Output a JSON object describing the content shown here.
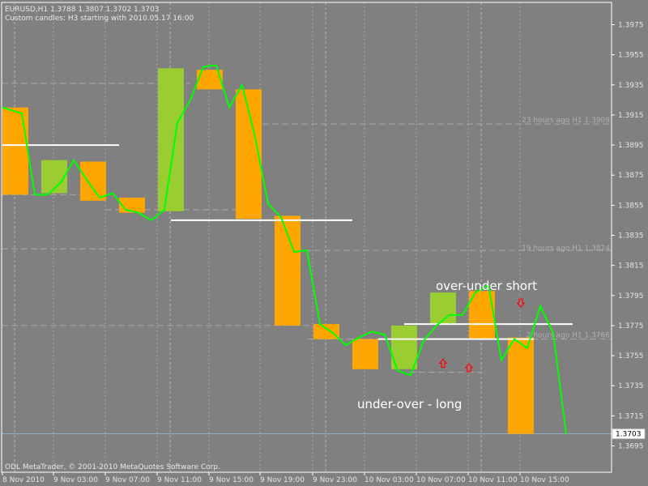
{
  "header": {
    "line1": "EURUSD,H1  1.3788 1.3807 1.3702 1.3703",
    "line2": "Custom candles: H3 starting with 2010.05.17 16:00"
  },
  "footer": {
    "copyright": "ODL MetaTrader, © 2001-2010 MetaQuotes Software Corp."
  },
  "annotations": {
    "short": "over-under short",
    "long": "under-over - long"
  },
  "level_labels": [
    {
      "text": "23 hours ago H1 1.3909",
      "price": 1.3909
    },
    {
      "text": "19 hours ago H1 1.3824",
      "price": 1.3824
    },
    {
      "text": "2 hours ago H1 1.3766",
      "price": 1.3766
    }
  ],
  "colors": {
    "background": "#808080",
    "bull": "#9ACD32",
    "bear": "#FFA500",
    "price_line": "#00FF00",
    "level_line": "#FFFFFF",
    "arrow": "#FF0000"
  },
  "chart_data": {
    "type": "candlestick",
    "symbol": "EURUSD",
    "timeframe": "H1",
    "current_price": "1.3703",
    "ylim": [
      1.369,
      1.399
    ],
    "y_ticks": [
      "1.3975",
      "1.3955",
      "1.3935",
      "1.3915",
      "1.3895",
      "1.3875",
      "1.3855",
      "1.3835",
      "1.3815",
      "1.3795",
      "1.3775",
      "1.3755",
      "1.3735",
      "1.3715",
      "1.3695"
    ],
    "x_ticks": [
      "8 Nov 2010",
      "9 Nov 03:00",
      "9 Nov 07:00",
      "9 Nov 11:00",
      "9 Nov 15:00",
      "9 Nov 19:00",
      "9 Nov 23:00",
      "10 Nov 03:00",
      "10 Nov 07:00",
      "10 Nov 11:00",
      "10 Nov 15:00"
    ],
    "bar_count": 44,
    "custom_candles": [
      {
        "bar_start": 0,
        "bars": 2,
        "open": 1.392,
        "close": 1.3862,
        "dir": "down"
      },
      {
        "bar_start": 3,
        "bars": 2,
        "open": 1.3863,
        "close": 1.3885,
        "dir": "up"
      },
      {
        "bar_start": 6,
        "bars": 2,
        "open": 1.3884,
        "close": 1.3858,
        "dir": "down"
      },
      {
        "bar_start": 9,
        "bars": 2,
        "open": 1.386,
        "close": 1.385,
        "dir": "down"
      },
      {
        "bar_start": 12,
        "bars": 2,
        "open": 1.3851,
        "close": 1.3946,
        "dir": "up"
      },
      {
        "bar_start": 15,
        "bars": 2,
        "open": 1.3945,
        "close": 1.3932,
        "dir": "down"
      },
      {
        "bar_start": 18,
        "bars": 2,
        "open": 1.3932,
        "close": 1.3846,
        "dir": "down"
      },
      {
        "bar_start": 21,
        "bars": 2,
        "open": 1.3848,
        "close": 1.3775,
        "dir": "down"
      },
      {
        "bar_start": 24,
        "bars": 2,
        "open": 1.3776,
        "close": 1.3766,
        "dir": "down"
      },
      {
        "bar_start": 27,
        "bars": 2,
        "open": 1.3766,
        "close": 1.3746,
        "dir": "down"
      },
      {
        "bar_start": 30,
        "bars": 2,
        "open": 1.3746,
        "close": 1.3775,
        "dir": "up"
      },
      {
        "bar_start": 33,
        "bars": 2,
        "open": 1.3776,
        "close": 1.3797,
        "dir": "up"
      },
      {
        "bar_start": 36,
        "bars": 2,
        "open": 1.3798,
        "close": 1.3766,
        "dir": "down"
      },
      {
        "bar_start": 39,
        "bars": 2,
        "open": 1.3767,
        "close": 1.3703,
        "dir": "down"
      }
    ],
    "close_line": [
      1.392,
      1.3916,
      1.3862,
      1.3862,
      1.387,
      1.3885,
      1.3872,
      1.386,
      1.3863,
      1.3852,
      1.385,
      1.3845,
      1.3852,
      1.391,
      1.3925,
      1.3947,
      1.3948,
      1.392,
      1.3935,
      1.39,
      1.3856,
      1.3847,
      1.3824,
      1.3825,
      1.3776,
      1.377,
      1.3762,
      1.3767,
      1.3771,
      1.3769,
      1.3745,
      1.3742,
      1.3765,
      1.3775,
      1.3782,
      1.3782,
      1.3797,
      1.3802,
      1.3752,
      1.3766,
      1.376,
      1.3788,
      1.377,
      1.3703
    ],
    "levels": [
      {
        "bar_start": 0,
        "bar_end": 9,
        "price": 1.3895
      },
      {
        "bar_start": 13,
        "bar_end": 27,
        "price": 1.3845
      },
      {
        "bar_start": 29,
        "bar_end": 41,
        "price": 1.3766
      },
      {
        "bar_start": 31,
        "bar_end": 44,
        "price": 1.3776
      }
    ],
    "up_arrows": [
      {
        "bar": 34,
        "price": 1.375
      },
      {
        "bar": 36,
        "price": 1.3747
      }
    ],
    "down_arrows": [
      {
        "bar": 40,
        "price": 1.379
      }
    ]
  }
}
